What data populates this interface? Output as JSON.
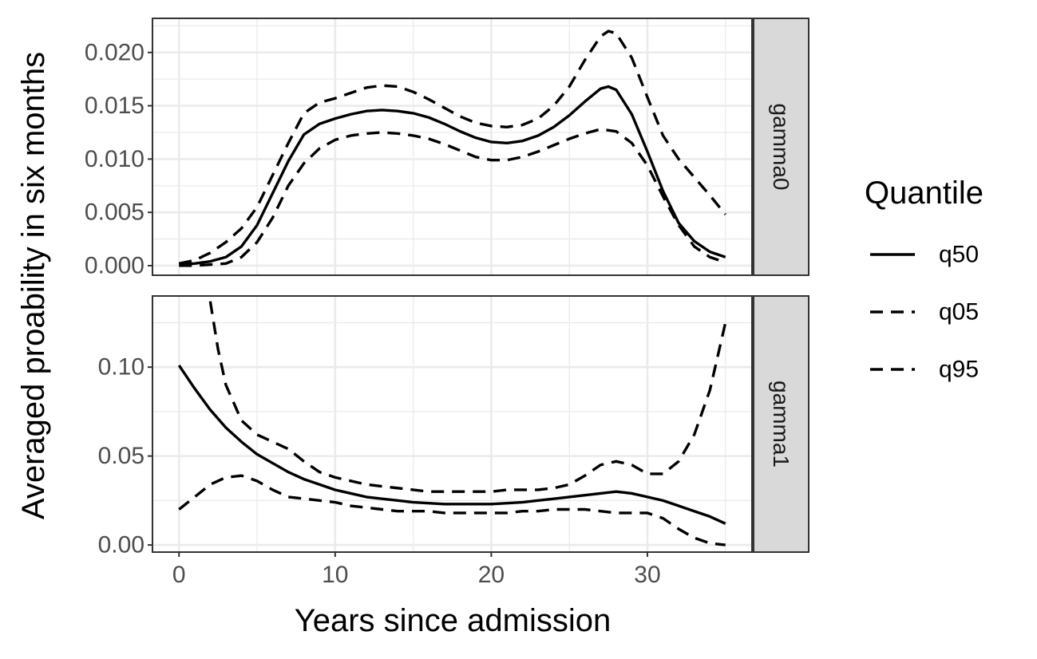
{
  "chart_data": {
    "type": "line",
    "xlabel": "Years since admission",
    "ylabel": "Averaged proability in six months",
    "xlim": [
      -1.7,
      36.7
    ],
    "x_ticks": [
      "0",
      "10",
      "20",
      "30"
    ],
    "grid": true,
    "legend": {
      "title": "Quantile",
      "position": "right",
      "entries": [
        {
          "name": "q50",
          "linetype": "solid"
        },
        {
          "name": "q05",
          "linetype": "dashed"
        },
        {
          "name": "q95",
          "linetype": "dashed"
        }
      ]
    },
    "panels": [
      {
        "strip": "gamma0",
        "ylim": [
          -0.0009,
          0.0232
        ],
        "y_ticks": [
          "0.000",
          "0.005",
          "0.010",
          "0.015",
          "0.020"
        ],
        "series": [
          {
            "name": "q50",
            "linetype": "solid",
            "x": [
              0,
              1,
              2,
              3,
              4,
              5,
              6,
              7,
              8,
              9,
              10,
              11,
              12,
              13,
              14,
              15,
              16,
              17,
              18,
              19,
              20,
              21,
              22,
              23,
              24,
              25,
              26,
              27,
              27.5,
              28,
              29,
              30,
              31,
              32,
              33,
              34,
              35
            ],
            "y": [
              0.0001,
              0.0002,
              0.0004,
              0.0008,
              0.0018,
              0.0038,
              0.0068,
              0.0098,
              0.0123,
              0.0133,
              0.0138,
              0.0142,
              0.0145,
              0.0146,
              0.0145,
              0.0143,
              0.0139,
              0.0133,
              0.0126,
              0.012,
              0.0116,
              0.0115,
              0.0117,
              0.0122,
              0.013,
              0.0141,
              0.0154,
              0.0166,
              0.0168,
              0.0165,
              0.0142,
              0.0107,
              0.007,
              0.004,
              0.0023,
              0.0013,
              0.0008
            ]
          },
          {
            "name": "q05",
            "linetype": "dashed",
            "x": [
              0,
              1,
              2,
              3,
              4,
              5,
              6,
              7,
              8,
              9,
              10,
              11,
              12,
              13,
              14,
              15,
              16,
              17,
              18,
              19,
              20,
              21,
              22,
              23,
              24,
              25,
              26,
              27,
              28,
              29,
              30,
              31,
              32,
              33,
              34,
              35
            ],
            "y": [
              0.0,
              0.0,
              0.0001,
              0.0002,
              0.0008,
              0.0022,
              0.0045,
              0.0075,
              0.0096,
              0.011,
              0.0118,
              0.0122,
              0.0124,
              0.0125,
              0.0124,
              0.0122,
              0.0119,
              0.0114,
              0.0108,
              0.0102,
              0.0099,
              0.0099,
              0.0102,
              0.0107,
              0.0113,
              0.0119,
              0.0124,
              0.0128,
              0.0126,
              0.0115,
              0.0094,
              0.0065,
              0.0038,
              0.0018,
              0.0008,
              0.0003
            ]
          },
          {
            "name": "q95",
            "linetype": "dashed",
            "x": [
              0,
              1,
              2,
              3,
              4,
              5,
              6,
              7,
              8,
              9,
              10,
              11,
              12,
              13,
              14,
              15,
              16,
              17,
              18,
              19,
              20,
              21,
              22,
              23,
              24,
              25,
              26,
              27,
              27.5,
              28,
              29,
              30,
              31,
              32,
              33,
              34,
              35
            ],
            "y": [
              0.0002,
              0.0005,
              0.0012,
              0.0022,
              0.0035,
              0.0055,
              0.0085,
              0.0115,
              0.0143,
              0.0153,
              0.0157,
              0.0162,
              0.0167,
              0.0169,
              0.0168,
              0.0163,
              0.0156,
              0.0148,
              0.014,
              0.0134,
              0.0131,
              0.013,
              0.0132,
              0.0138,
              0.015,
              0.0168,
              0.0193,
              0.0215,
              0.022,
              0.0218,
              0.0195,
              0.0158,
              0.0122,
              0.01,
              0.0083,
              0.0066,
              0.0048
            ]
          }
        ]
      },
      {
        "strip": "gamma1",
        "ylim": [
          -0.004,
          0.14
        ],
        "y_ticks": [
          "0.00",
          "0.05",
          "0.10"
        ],
        "series": [
          {
            "name": "q50",
            "linetype": "solid",
            "x": [
              0,
              1,
              2,
              3,
              4,
              5,
              6,
              7,
              8,
              9,
              10,
              11,
              12,
              13,
              14,
              15,
              16,
              17,
              18,
              19,
              20,
              21,
              22,
              23,
              24,
              25,
              26,
              27,
              28,
              29,
              30,
              31,
              32,
              33,
              34,
              35
            ],
            "y": [
              0.101,
              0.088,
              0.076,
              0.066,
              0.058,
              0.051,
              0.046,
              0.041,
              0.037,
              0.034,
              0.031,
              0.029,
              0.027,
              0.026,
              0.025,
              0.024,
              0.0235,
              0.023,
              0.023,
              0.023,
              0.023,
              0.0235,
              0.024,
              0.025,
              0.026,
              0.027,
              0.028,
              0.029,
              0.03,
              0.029,
              0.027,
              0.025,
              0.022,
              0.019,
              0.016,
              0.012
            ]
          },
          {
            "name": "q05",
            "linetype": "dashed",
            "x": [
              0,
              1,
              2,
              3,
              4,
              5,
              6,
              7,
              8,
              9,
              10,
              11,
              12,
              13,
              14,
              15,
              16,
              17,
              18,
              19,
              20,
              21,
              22,
              23,
              24,
              25,
              26,
              27,
              28,
              29,
              30,
              31,
              32,
              33,
              34,
              35
            ],
            "y": [
              0.02,
              0.027,
              0.034,
              0.038,
              0.039,
              0.036,
              0.031,
              0.027,
              0.026,
              0.025,
              0.024,
              0.022,
              0.021,
              0.02,
              0.019,
              0.019,
              0.019,
              0.018,
              0.018,
              0.018,
              0.018,
              0.018,
              0.019,
              0.019,
              0.02,
              0.02,
              0.02,
              0.019,
              0.018,
              0.018,
              0.018,
              0.015,
              0.009,
              0.004,
              0.001,
              0.0
            ]
          },
          {
            "name": "q95",
            "linetype": "dashed",
            "x": [
              2,
              2.5,
              3,
              4,
              5,
              6,
              7,
              8,
              9,
              10,
              11,
              12,
              13,
              14,
              15,
              16,
              17,
              18,
              19,
              20,
              21,
              22,
              23,
              24,
              25,
              26,
              27,
              28,
              29,
              30,
              31,
              32,
              33,
              34,
              35
            ],
            "y": [
              0.137,
              0.11,
              0.09,
              0.07,
              0.062,
              0.058,
              0.054,
              0.047,
              0.041,
              0.038,
              0.036,
              0.034,
              0.033,
              0.032,
              0.031,
              0.03,
              0.03,
              0.03,
              0.03,
              0.03,
              0.031,
              0.031,
              0.031,
              0.032,
              0.034,
              0.039,
              0.045,
              0.047,
              0.045,
              0.04,
              0.04,
              0.047,
              0.062,
              0.087,
              0.125
            ]
          }
        ]
      }
    ]
  }
}
